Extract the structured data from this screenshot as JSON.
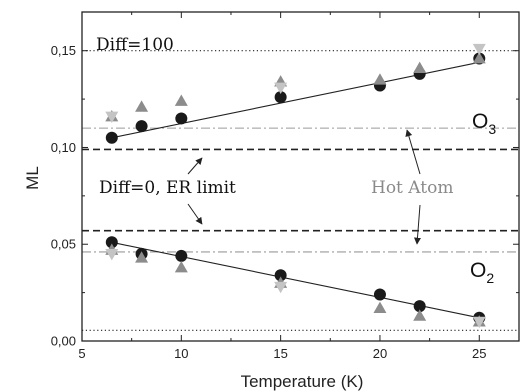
{
  "chart_data": {
    "type": "scatter",
    "xlabel": "Temperature (K)",
    "ylabel": "ML",
    "xlim": [
      5,
      27
    ],
    "ylim": [
      0,
      0.17
    ],
    "x_ticks": [
      5,
      10,
      15,
      20,
      25
    ],
    "y_ticks": [
      0.0,
      0.05,
      0.1,
      0.15
    ],
    "y_tick_labels": [
      "0,00",
      "0,05",
      "0,10",
      "0,15"
    ],
    "grid": false,
    "series": [
      {
        "name": "O3",
        "marker": "circle",
        "color": "#1a1a1a",
        "x": [
          6.5,
          8,
          10,
          15,
          20,
          22,
          25
        ],
        "y": [
          0.105,
          0.111,
          0.115,
          0.126,
          0.132,
          0.138,
          0.146
        ]
      },
      {
        "marker": "triangle-up",
        "color": "#8c8c8c",
        "x": [
          6.5,
          8,
          10,
          15,
          20,
          22,
          25
        ],
        "y": [
          0.116,
          0.121,
          0.124,
          0.134,
          0.135,
          0.141,
          0.146
        ]
      },
      {
        "marker": "triangle-down",
        "color": "#c4c4c4",
        "x": [
          6.5,
          15,
          25
        ],
        "y": [
          0.116,
          0.131,
          0.151
        ]
      },
      {
        "name": "O2",
        "marker": "circle",
        "color": "#1a1a1a",
        "x": [
          6.5,
          8,
          10,
          15,
          20,
          22,
          25
        ],
        "y": [
          0.051,
          0.045,
          0.044,
          0.034,
          0.024,
          0.018,
          0.012
        ]
      },
      {
        "marker": "triangle-up",
        "color": "#8c8c8c",
        "x": [
          6.5,
          8,
          10,
          15,
          20,
          22,
          25
        ],
        "y": [
          0.047,
          0.043,
          0.038,
          0.03,
          0.017,
          0.013,
          0.01
        ]
      },
      {
        "marker": "triangle-down",
        "color": "#c4c4c4",
        "x": [
          6.5,
          15,
          25
        ],
        "y": [
          0.045,
          0.028,
          0.01
        ]
      }
    ],
    "fit_lines": [
      {
        "x": [
          6.5,
          25
        ],
        "y": [
          0.105,
          0.144
        ]
      },
      {
        "x": [
          6.5,
          25
        ],
        "y": [
          0.051,
          0.012
        ]
      }
    ],
    "reference_lines": [
      {
        "y": 0.15,
        "style": "dotted",
        "color": "#222222"
      },
      {
        "y": 0.0055,
        "style": "dotted",
        "color": "#222222"
      },
      {
        "y": 0.099,
        "style": "dashed",
        "color": "#222222"
      },
      {
        "y": 0.057,
        "style": "dashed",
        "color": "#222222"
      },
      {
        "y": 0.11,
        "style": "dash-dot",
        "color": "#9a9a9a"
      },
      {
        "y": 0.046,
        "style": "dash-dot",
        "color": "#9a9a9a"
      }
    ],
    "annotations": {
      "diff100": "Diff=100",
      "diff0": "Diff=0, ER limit",
      "hot_atom": "Hot Atom",
      "o3_base": "O",
      "o3_sub": "3",
      "o2_base": "O",
      "o2_sub": "2"
    }
  }
}
